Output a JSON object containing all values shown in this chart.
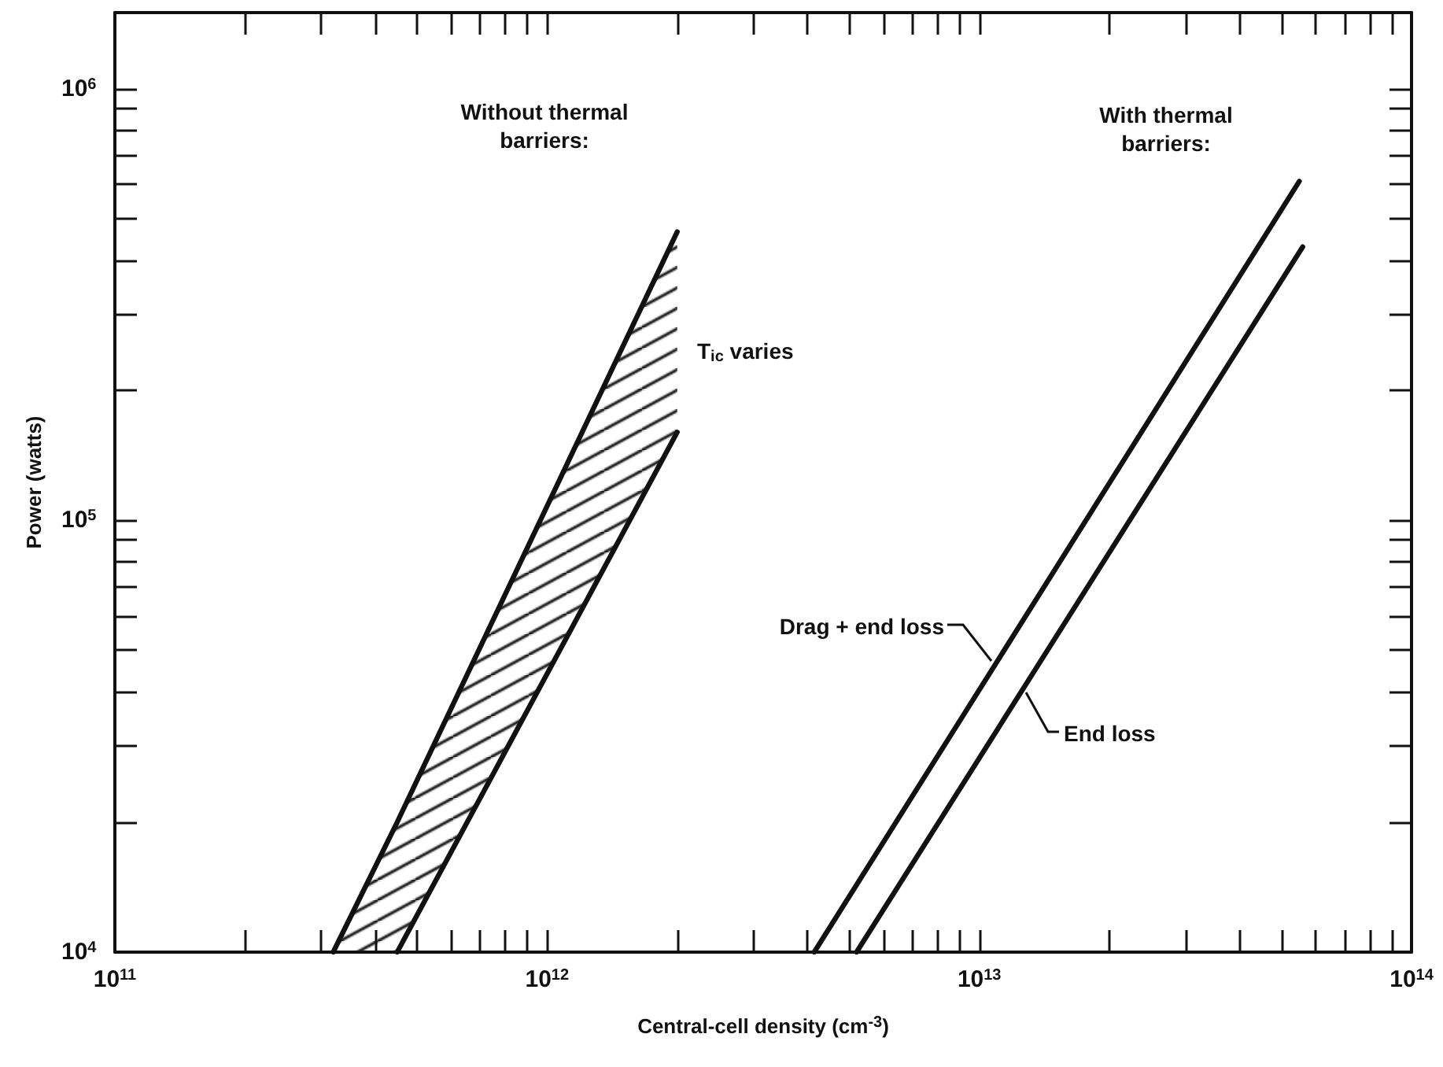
{
  "chart_data": {
    "type": "line",
    "xlabel": "Central-cell density (cm$^{-3}$)",
    "ylabel": "Power (watts)",
    "log": "xy",
    "grid": false,
    "legend": false,
    "marker": "none",
    "line_style": "solid",
    "xlim": [
      100000000000,
      100000000000000
    ],
    "xticks": [
      {
        "value": 100000000000,
        "label": "10$^{11}$"
      },
      {
        "value": 200000000000,
        "label": null
      },
      {
        "value": 300000000000,
        "label": null
      },
      {
        "value": 400000000000,
        "label": null
      },
      {
        "value": 500000000000,
        "label": null
      },
      {
        "value": 600000000000,
        "label": null
      },
      {
        "value": 700000000000,
        "label": null
      },
      {
        "value": 800000000000,
        "label": null
      },
      {
        "value": 900000000000,
        "label": null
      },
      {
        "value": 1000000000000,
        "label": "10$^{12}$"
      },
      {
        "value": 2000000000000,
        "label": null
      },
      {
        "value": 3000000000000,
        "label": null
      },
      {
        "value": 4000000000000,
        "label": null
      },
      {
        "value": 5000000000000,
        "label": null
      },
      {
        "value": 6000000000000,
        "label": null
      },
      {
        "value": 7000000000000,
        "label": null
      },
      {
        "value": 8000000000000,
        "label": null
      },
      {
        "value": 9000000000000,
        "label": null
      },
      {
        "value": 10000000000000,
        "label": "10$^{13}$"
      },
      {
        "value": 20000000000000,
        "label": null
      },
      {
        "value": 30000000000000,
        "label": null
      },
      {
        "value": 40000000000000,
        "label": null
      },
      {
        "value": 50000000000000,
        "label": null
      },
      {
        "value": 60000000000000,
        "label": null
      },
      {
        "value": 70000000000000,
        "label": null
      },
      {
        "value": 80000000000000,
        "label": null
      },
      {
        "value": 90000000000000,
        "label": null
      },
      {
        "value": 100000000000000,
        "label": "10$^{14}$"
      }
    ],
    "ylim": [
      10000,
      1500000
    ],
    "yticks": [
      {
        "value": 10000,
        "label": "10$^{4}$"
      },
      {
        "value": 20000,
        "label": null
      },
      {
        "value": 30000,
        "label": null
      },
      {
        "value": 40000,
        "label": null
      },
      {
        "value": 50000,
        "label": null
      },
      {
        "value": 60000,
        "label": null
      },
      {
        "value": 70000,
        "label": null
      },
      {
        "value": 80000,
        "label": null
      },
      {
        "value": 90000,
        "label": null
      },
      {
        "value": 100000,
        "label": "10$^{5}$"
      },
      {
        "value": 200000,
        "label": null
      },
      {
        "value": 300000,
        "label": null
      },
      {
        "value": 400000,
        "label": null
      },
      {
        "value": 500000,
        "label": null
      },
      {
        "value": 600000,
        "label": null
      },
      {
        "value": 700000,
        "label": null
      },
      {
        "value": 800000,
        "label": null
      },
      {
        "value": 900000,
        "label": null
      },
      {
        "value": 1000000,
        "label": "10$^{6}$"
      }
    ],
    "annotations": [
      "Without thermal\nbarriers:",
      "With thermal\nbarriers:",
      "T$_{ic}$ varies"
    ],
    "series": [
      {
        "color": "#111111",
        "x": [
          320000000000,
          450000000000,
          2000000000000
        ],
        "values": [
          10000,
          20000,
          466000
        ],
        "lower": [
          10000,
          10000,
          160000
        ],
        "upper": [
          10000,
          20000,
          466000
        ]
      },
      {
        "color": "#111111",
        "x": [
          450000000000,
          2000000000000
        ],
        "values": [
          10000,
          160000
        ]
      },
      {
        "name": "Drag + end loss",
        "color": "#111111",
        "x": [
          4150000000000,
          55000000000000
        ],
        "values": [
          10000,
          610000
        ]
      },
      {
        "name": "End loss",
        "color": "#111111",
        "x": [
          5200000000000,
          56000000000000
        ],
        "values": [
          10000,
          430000
        ]
      }
    ]
  }
}
